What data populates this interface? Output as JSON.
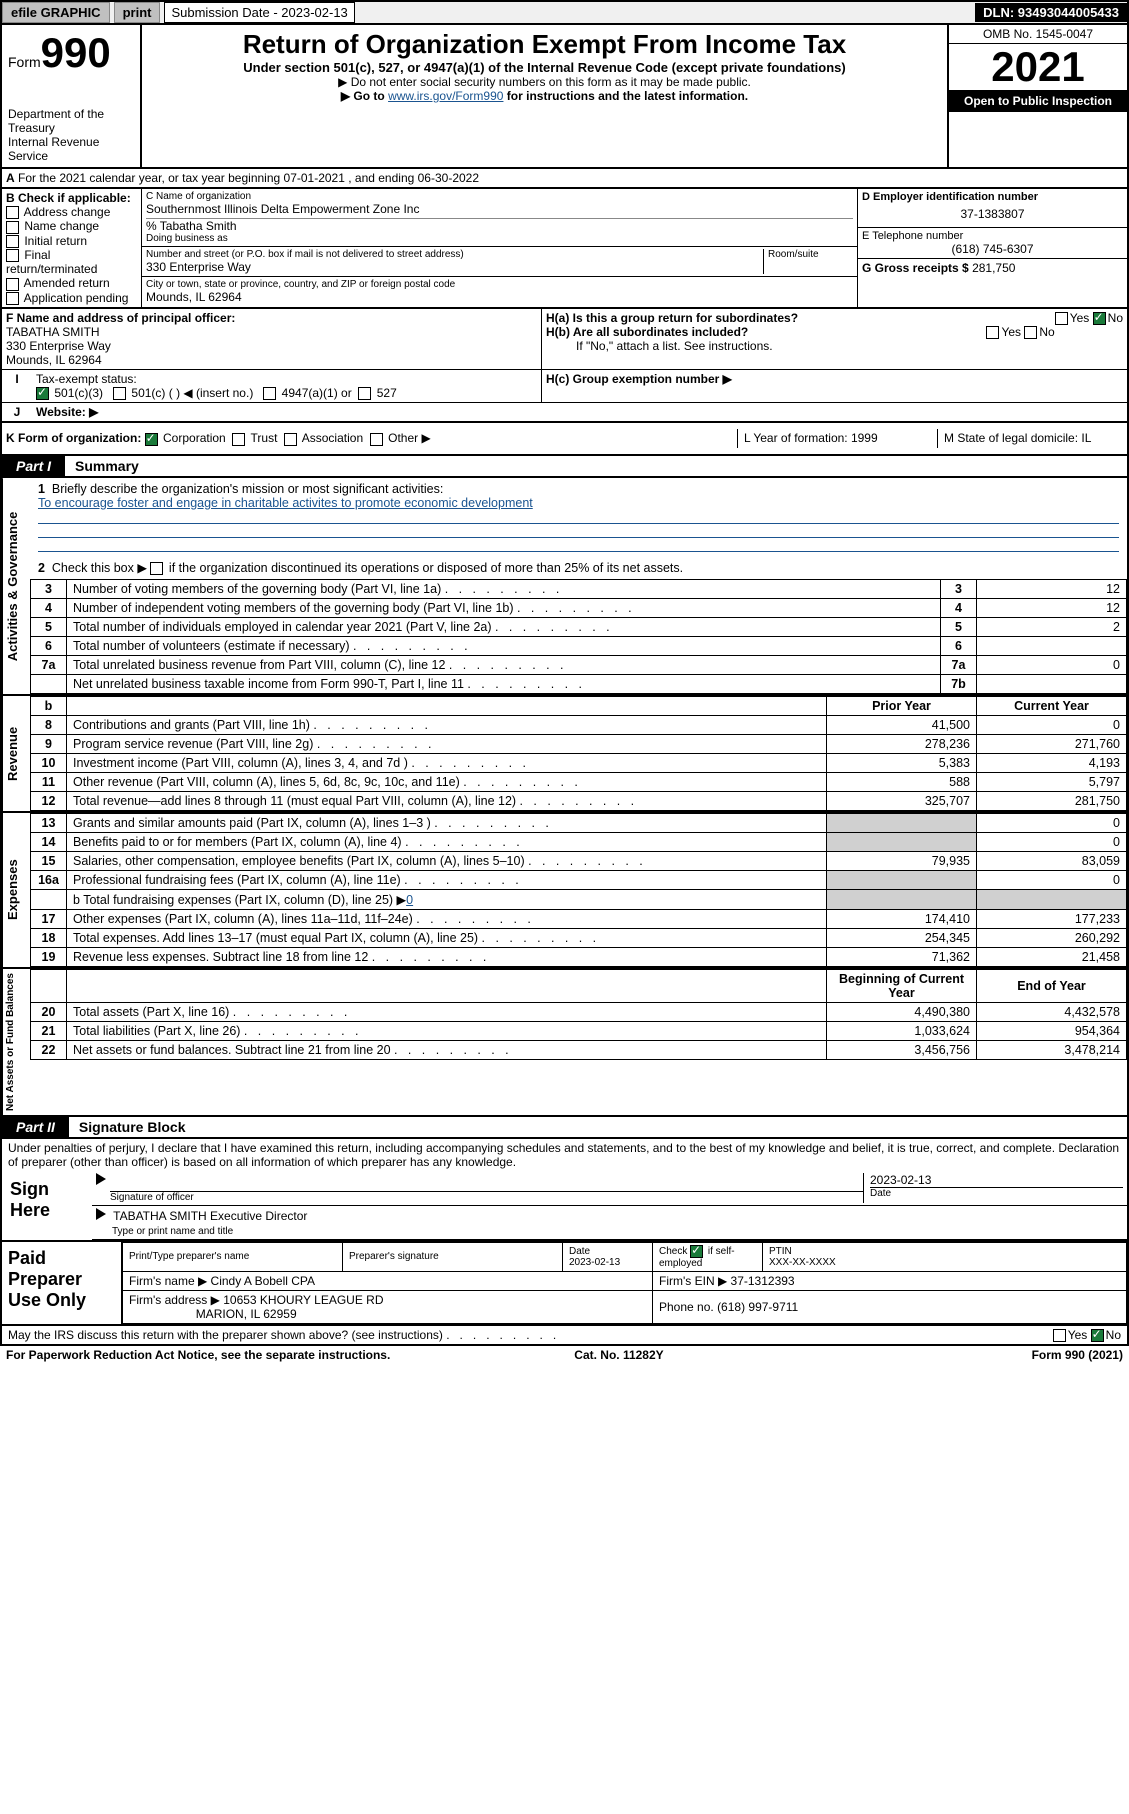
{
  "topbar": {
    "efile": "efile GRAPHIC",
    "print": "print",
    "sub_label": "Submission Date - 2023-02-13",
    "dln": "DLN: 93493044005433"
  },
  "header": {
    "form_prefix": "Form",
    "form_num": "990",
    "dept": "Department of the Treasury\nInternal Revenue Service",
    "title": "Return of Organization Exempt From Income Tax",
    "sub": "Under section 501(c), 527, or 4947(a)(1) of the Internal Revenue Code (except private foundations)",
    "sub2": "▶ Do not enter social security numbers on this form as it may be made public.",
    "sub3_a": "▶ Go to ",
    "sub3_link": "www.irs.gov/Form990",
    "sub3_b": " for instructions and the latest information.",
    "omb": "OMB No. 1545-0047",
    "year": "2021",
    "open": "Open to Public Inspection"
  },
  "line_a": {
    "label": "A",
    "text": "For the 2021 calendar year, or tax year beginning 07-01-2021   , and ending 06-30-2022"
  },
  "col_b": {
    "label": "B Check if applicable:",
    "opts": [
      "Address change",
      "Name change",
      "Initial return",
      "Final return/terminated",
      "Amended return",
      "Application pending"
    ]
  },
  "col_c": {
    "c_label": "C Name of organization",
    "org_name": "Southernmost Illinois Delta Empowerment Zone Inc",
    "care_of": "% Tabatha Smith",
    "dba_label": "Doing business as",
    "addr_label": "Number and street (or P.O. box if mail is not delivered to street address)",
    "room_suite": "Room/suite",
    "street": "330 Enterprise Way",
    "city_label": "City or town, state or province, country, and ZIP or foreign postal code",
    "city": "Mounds, IL   62964"
  },
  "col_d": {
    "d_label": "D Employer identification number",
    "ein": "37-1383807",
    "e_label": "E Telephone number",
    "phone": "(618) 745-6307",
    "g_label": "G Gross receipts $",
    "gross": "281,750"
  },
  "fhij": {
    "f_label": "F Name and address of principal officer:",
    "f_name": "TABATHA SMITH",
    "f_addr1": "330 Enterprise Way",
    "f_addr2": "Mounds, IL   62964",
    "i_label": "Tax-exempt status:",
    "i_opt1": "501(c)(3)",
    "i_opt2": "501(c) (   ) ◀ (insert no.)",
    "i_opt3": "4947(a)(1) or",
    "i_opt4": "527",
    "j_label": "Website: ▶",
    "ha_label": "H(a)  Is this a group return for subordinates?",
    "hb_label": "H(b)  Are all subordinates included?",
    "hb_note": "If \"No,\" attach a list. See instructions.",
    "hc_label": "H(c)  Group exemption number ▶",
    "yes": "Yes",
    "no": "No"
  },
  "klm": {
    "k_label": "K Form of organization:",
    "k_opts": [
      "Corporation",
      "Trust",
      "Association",
      "Other ▶"
    ],
    "l_label": "L Year of formation: 1999",
    "m_label": "M State of legal domicile: IL"
  },
  "part1": {
    "label": "Part I",
    "title": "Summary"
  },
  "gov": {
    "vlabel": "Activities & Governance",
    "l1a": "Briefly describe the organization's mission or most significant activities:",
    "l1b": "To encourage foster and engage in charitable activites to promote economic development",
    "l2": "Check this box ▶           if the organization discontinued its operations or disposed of more than 25% of its net assets.",
    "rows": [
      {
        "n": "3",
        "t": "Number of voting members of the governing body (Part VI, line 1a)",
        "bn": "3",
        "v": "12"
      },
      {
        "n": "4",
        "t": "Number of independent voting members of the governing body (Part VI, line 1b)",
        "bn": "4",
        "v": "12"
      },
      {
        "n": "5",
        "t": "Total number of individuals employed in calendar year 2021 (Part V, line 2a)",
        "bn": "5",
        "v": "2"
      },
      {
        "n": "6",
        "t": "Total number of volunteers (estimate if necessary)",
        "bn": "6",
        "v": ""
      },
      {
        "n": "7a",
        "t": "Total unrelated business revenue from Part VIII, column (C), line 12",
        "bn": "7a",
        "v": "0"
      },
      {
        "n": "",
        "t": "Net unrelated business taxable income from Form 990-T, Part I, line 11",
        "bn": "7b",
        "v": ""
      }
    ]
  },
  "rev": {
    "vlabel": "Revenue",
    "hdr_b": "b",
    "hdr_prior": "Prior Year",
    "hdr_curr": "Current Year",
    "rows": [
      {
        "n": "8",
        "t": "Contributions and grants (Part VIII, line 1h)",
        "p": "41,500",
        "c": "0"
      },
      {
        "n": "9",
        "t": "Program service revenue (Part VIII, line 2g)",
        "p": "278,236",
        "c": "271,760"
      },
      {
        "n": "10",
        "t": "Investment income (Part VIII, column (A), lines 3, 4, and 7d )",
        "p": "5,383",
        "c": "4,193"
      },
      {
        "n": "11",
        "t": "Other revenue (Part VIII, column (A), lines 5, 6d, 8c, 9c, 10c, and 11e)",
        "p": "588",
        "c": "5,797"
      },
      {
        "n": "12",
        "t": "Total revenue—add lines 8 through 11 (must equal Part VIII, column (A), line 12)",
        "p": "325,707",
        "c": "281,750"
      }
    ]
  },
  "exp": {
    "vlabel": "Expenses",
    "rows": [
      {
        "n": "13",
        "t": "Grants and similar amounts paid (Part IX, column (A), lines 1–3 )",
        "p": "",
        "c": "0"
      },
      {
        "n": "14",
        "t": "Benefits paid to or for members (Part IX, column (A), line 4)",
        "p": "",
        "c": "0"
      },
      {
        "n": "15",
        "t": "Salaries, other compensation, employee benefits (Part IX, column (A), lines 5–10)",
        "p": "79,935",
        "c": "83,059"
      },
      {
        "n": "16a",
        "t": "Professional fundraising fees (Part IX, column (A), line 11e)",
        "p": "",
        "c": "0"
      }
    ],
    "l16b_a": "b   Total fundraising expenses (Part IX, column (D), line 25) ▶",
    "l16b_v": "0",
    "rows2": [
      {
        "n": "17",
        "t": "Other expenses (Part IX, column (A), lines 11a–11d, 11f–24e)",
        "p": "174,410",
        "c": "177,233"
      },
      {
        "n": "18",
        "t": "Total expenses. Add lines 13–17 (must equal Part IX, column (A), line 25)",
        "p": "254,345",
        "c": "260,292"
      },
      {
        "n": "19",
        "t": "Revenue less expenses. Subtract line 18 from line 12",
        "p": "71,362",
        "c": "21,458"
      }
    ]
  },
  "net": {
    "vlabel": "Net Assets or Fund Balances",
    "hdr_beg": "Beginning of Current Year",
    "hdr_end": "End of Year",
    "rows": [
      {
        "n": "20",
        "t": "Total assets (Part X, line 16)",
        "p": "4,490,380",
        "c": "4,432,578"
      },
      {
        "n": "21",
        "t": "Total liabilities (Part X, line 26)",
        "p": "1,033,624",
        "c": "954,364"
      },
      {
        "n": "22",
        "t": "Net assets or fund balances. Subtract line 21 from line 20",
        "p": "3,456,756",
        "c": "3,478,214"
      }
    ]
  },
  "part2": {
    "label": "Part II",
    "title": "Signature Block",
    "decl": "Under penalties of perjury, I declare that I have examined this return, including accompanying schedules and statements, and to the best of my knowledge and belief, it is true, correct, and complete. Declaration of preparer (other than officer) is based on all information of which preparer has any knowledge."
  },
  "sign": {
    "left": "Sign Here",
    "sig_label": "Signature of officer",
    "date_label": "Date",
    "date": "2023-02-13",
    "name_line": "TABATHA SMITH  Executive Director",
    "type_label": "Type or print name and title"
  },
  "paid": {
    "left": "Paid Preparer Use Only",
    "h_print": "Print/Type preparer's name",
    "h_sig": "Preparer's signature",
    "h_date": "Date",
    "date": "2023-02-13",
    "h_chk": "Check         if self-employed",
    "h_ptin": "PTIN",
    "ptin": "XXX-XX-XXXX",
    "firm_name_l": "Firm's name     ▶",
    "firm_name": "Cindy A Bobell CPA",
    "firm_ein_l": "Firm's EIN ▶",
    "firm_ein": "37-1312393",
    "firm_addr_l": "Firm's address ▶",
    "firm_addr1": "10653 KHOURY LEAGUE RD",
    "firm_addr2": "MARION, IL   62959",
    "phone_l": "Phone no.",
    "phone": "(618) 997-9711"
  },
  "footer": {
    "discuss": "May the IRS discuss this return with the preparer shown above? (see instructions)",
    "paperwork": "For Paperwork Reduction Act Notice, see the separate instructions.",
    "cat": "Cat. No. 11282Y",
    "form": "Form 990 (2021)"
  }
}
